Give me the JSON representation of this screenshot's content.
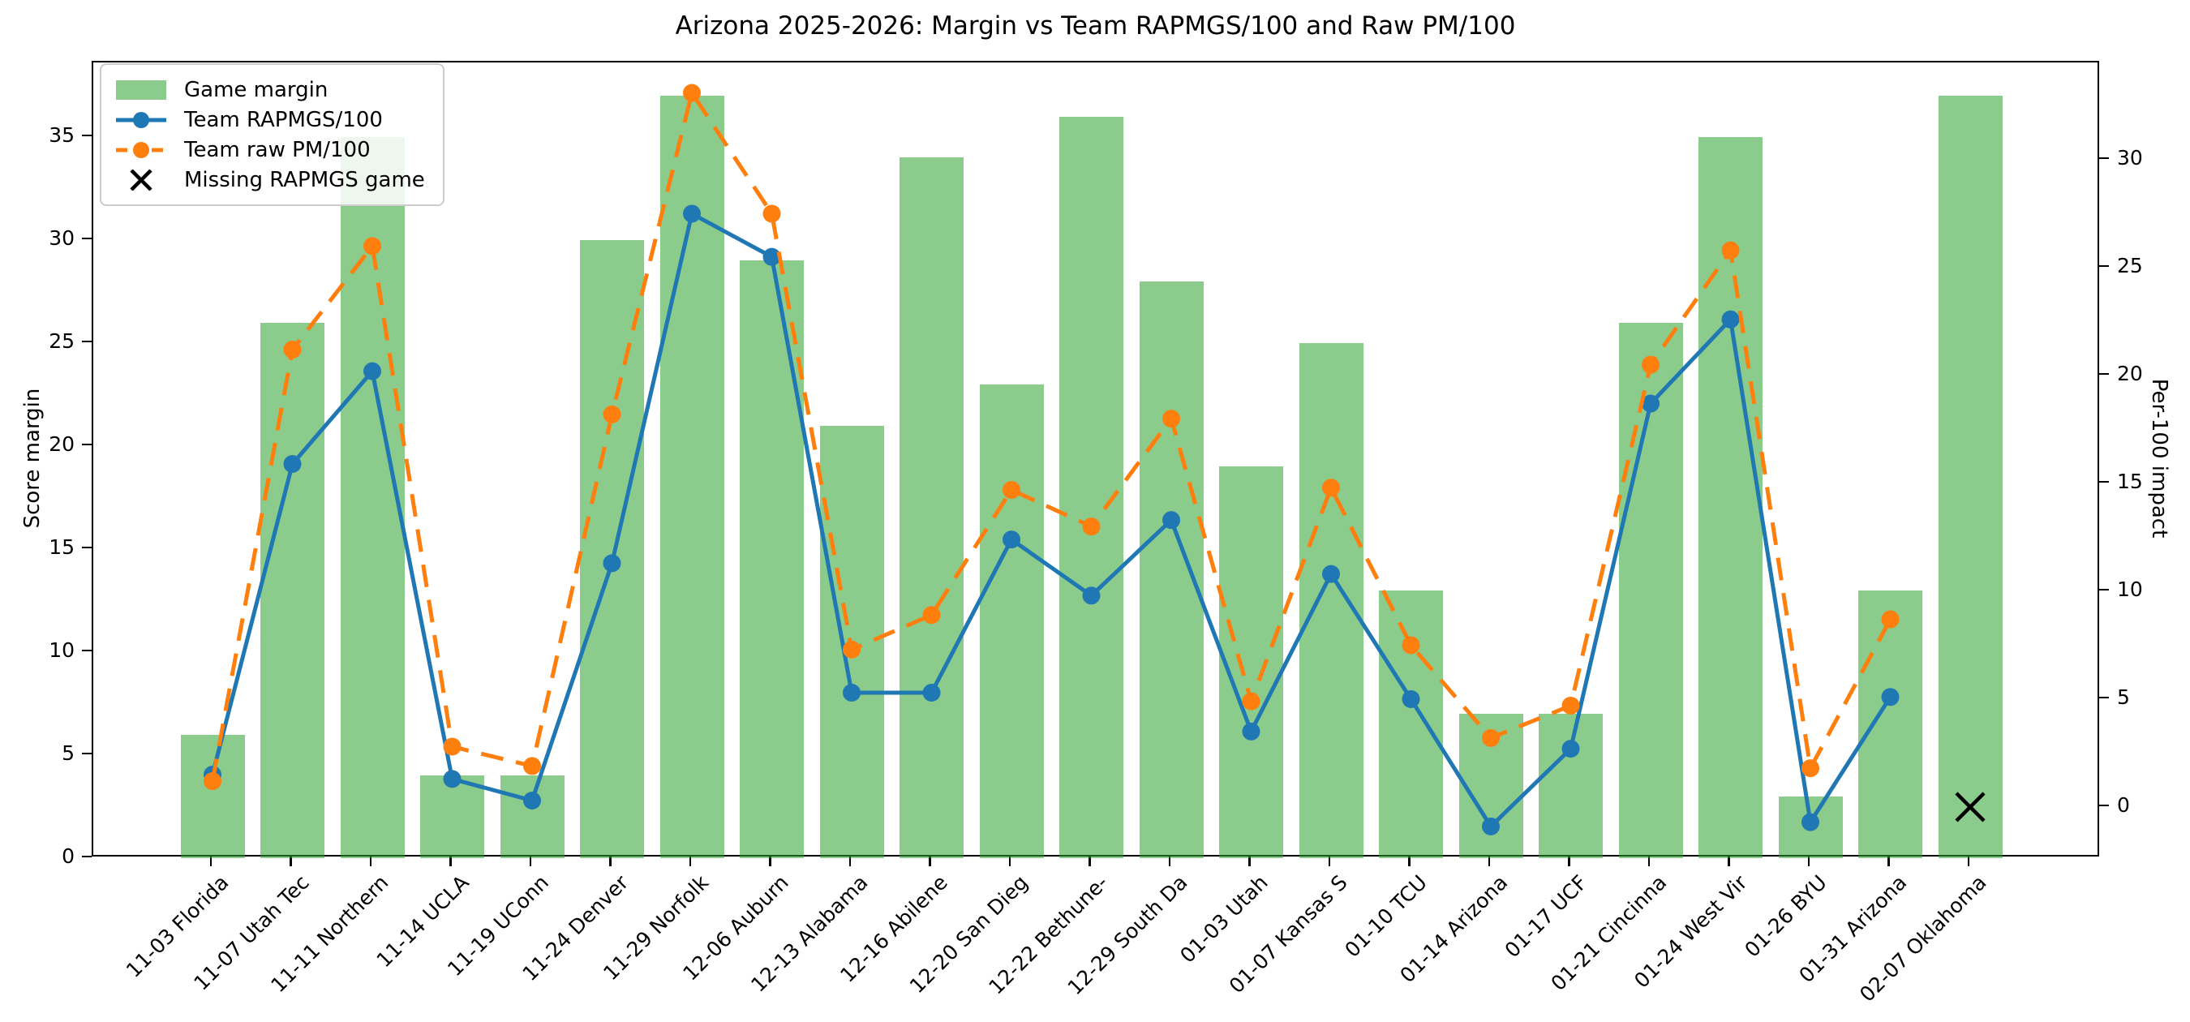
{
  "figure": {
    "title": "Arizona 2025-2026: Margin vs Team RAPMGS/100 and Raw PM/100"
  },
  "chart_data": {
    "type": "bar",
    "title": "Arizona 2025-2026: Margin vs Team RAPMGS/100 and Raw PM/100",
    "categories": [
      "11-03 Florida",
      "11-07 Utah Tec",
      "11-11 Northern",
      "11-14 UCLA",
      "11-19 UConn",
      "11-24 Denver",
      "11-29 Norfolk",
      "12-06 Auburn",
      "12-13 Alabama",
      "12-16 Abilene",
      "12-20 San Dieg",
      "12-22 Bethune-",
      "12-29 South Da",
      "01-03 Utah",
      "01-07 Kansas S",
      "01-10 TCU",
      "01-14 Arizona",
      "01-17 UCF",
      "01-21 Cincinna",
      "01-24 West Vir",
      "01-26 BYU",
      "01-31 Arizona",
      "02-07 Oklahoma"
    ],
    "series": [
      {
        "name": "Game margin",
        "type": "bar",
        "axis": "left",
        "color": "#2ca02c",
        "opacity": 0.55,
        "values": [
          6,
          26,
          35,
          4,
          4,
          30,
          37,
          29,
          21,
          34,
          23,
          36,
          28,
          19,
          25,
          13,
          7,
          7,
          26,
          35,
          3,
          13,
          37
        ]
      },
      {
        "name": "Team RAPMGS/100",
        "type": "line",
        "axis": "right",
        "color": "#1f77b4",
        "style": "solid",
        "values": [
          1.5,
          15.9,
          20.2,
          1.3,
          0.3,
          11.3,
          27.5,
          25.5,
          5.3,
          5.3,
          12.4,
          9.8,
          13.3,
          3.5,
          10.8,
          5.0,
          -0.9,
          2.7,
          18.7,
          22.6,
          -0.7,
          5.1,
          null
        ]
      },
      {
        "name": "Team raw PM/100",
        "type": "line",
        "axis": "right",
        "color": "#ff7f0e",
        "style": "dashed",
        "values": [
          1.2,
          21.2,
          26.0,
          2.8,
          1.9,
          18.2,
          33.1,
          27.5,
          7.3,
          8.9,
          14.7,
          13.0,
          18.0,
          4.9,
          14.8,
          7.5,
          3.2,
          4.7,
          20.5,
          25.8,
          1.8,
          8.7,
          null
        ]
      },
      {
        "name": "Missing RAPMGS game",
        "type": "marker-x",
        "axis": "right",
        "color": "#000000",
        "points": [
          {
            "category": "02-07 Oklahoma",
            "index": 22,
            "value": 0
          }
        ]
      }
    ],
    "left_axis": {
      "label": "Score margin",
      "ticks": [
        0,
        5,
        10,
        15,
        20,
        25,
        30,
        35
      ],
      "min": 0,
      "max": 38.62
    },
    "right_axis": {
      "label": "Per-100 impact",
      "ticks": [
        0,
        5,
        10,
        15,
        20,
        25,
        30
      ],
      "min": -2.37,
      "max": 34.51
    },
    "legend": {
      "position": "upper left",
      "entries": [
        "Game margin",
        "Team RAPMGS/100",
        "Team raw PM/100",
        "Missing RAPMGS game"
      ]
    },
    "grid": false
  }
}
